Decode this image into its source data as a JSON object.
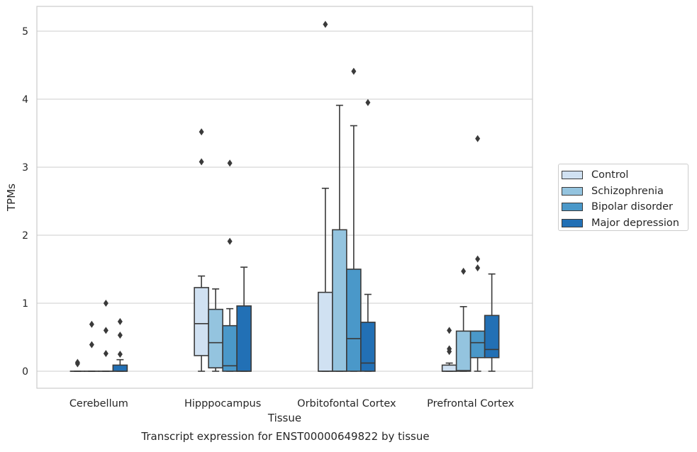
{
  "chart_data": {
    "type": "box",
    "caption": "Transcript expression for ENST00000649822 by tissue",
    "xlabel": "Tissue",
    "ylabel": "TPMs",
    "ylim": [
      -0.25,
      5.35
    ],
    "yticks": [
      "0",
      "1",
      "2",
      "3",
      "4",
      "5"
    ],
    "grid": "horizontal",
    "legend_position": "right",
    "categories": [
      "Cerebellum",
      "Hipppocampus",
      "Orbitofontal Cortex",
      "Prefrontal Cortex"
    ],
    "series": [
      {
        "name": "Control",
        "color": "#d0e1f2",
        "boxes": [
          {
            "q1": 0,
            "median": 0,
            "q3": 0,
            "whisker_low": 0,
            "whisker_high": 0,
            "outliers": [
              0.13,
              0.11
            ]
          },
          {
            "q1": 0.23,
            "median": 0.7,
            "q3": 1.23,
            "whisker_low": 0,
            "whisker_high": 1.4,
            "outliers": [
              3.08,
              3.52
            ]
          },
          {
            "q1": 0,
            "median": 0,
            "q3": 1.16,
            "whisker_low": 0,
            "whisker_high": 2.69,
            "outliers": [
              5.1
            ]
          },
          {
            "q1": 0,
            "median": 0,
            "q3": 0.09,
            "whisker_low": 0,
            "whisker_high": 0.12,
            "outliers": [
              0.6,
              0.33,
              0.29
            ]
          }
        ]
      },
      {
        "name": "Schizophrenia",
        "color": "#94c4df",
        "boxes": [
          {
            "q1": 0,
            "median": 0,
            "q3": 0,
            "whisker_low": 0,
            "whisker_high": 0,
            "outliers": [
              0.69,
              0.39
            ]
          },
          {
            "q1": 0.05,
            "median": 0.42,
            "q3": 0.91,
            "whisker_low": 0,
            "whisker_high": 1.21,
            "outliers": []
          },
          {
            "q1": 0,
            "median": 0,
            "q3": 2.08,
            "whisker_low": 0,
            "whisker_high": 3.91,
            "outliers": []
          },
          {
            "q1": 0,
            "median": 0.01,
            "q3": 0.59,
            "whisker_low": 0,
            "whisker_high": 0.95,
            "outliers": [
              1.47
            ]
          }
        ]
      },
      {
        "name": "Bipolar disorder",
        "color": "#4a98c9",
        "boxes": [
          {
            "q1": 0,
            "median": 0,
            "q3": 0,
            "whisker_low": 0,
            "whisker_high": 0,
            "outliers": [
              1.0,
              0.6,
              0.26
            ]
          },
          {
            "q1": 0,
            "median": 0.08,
            "q3": 0.67,
            "whisker_low": 0,
            "whisker_high": 0.92,
            "outliers": [
              3.06,
              1.91
            ]
          },
          {
            "q1": 0,
            "median": 0.48,
            "q3": 1.5,
            "whisker_low": 0,
            "whisker_high": 3.61,
            "outliers": [
              4.41
            ]
          },
          {
            "q1": 0.2,
            "median": 0.42,
            "q3": 0.59,
            "whisker_low": 0,
            "whisker_high": 0.59,
            "outliers": [
              1.65,
              1.52,
              3.42
            ]
          }
        ]
      },
      {
        "name": "Major depression",
        "color": "#2270b5",
        "boxes": [
          {
            "q1": 0,
            "median": 0,
            "q3": 0.09,
            "whisker_low": 0,
            "whisker_high": 0.17,
            "outliers": [
              0.73,
              0.53,
              0.25
            ]
          },
          {
            "q1": 0,
            "median": 0,
            "q3": 0.96,
            "whisker_low": 0,
            "whisker_high": 1.53,
            "outliers": []
          },
          {
            "q1": 0,
            "median": 0.12,
            "q3": 0.72,
            "whisker_low": 0,
            "whisker_high": 1.13,
            "outliers": [
              3.95
            ]
          },
          {
            "q1": 0.2,
            "median": 0.32,
            "q3": 0.82,
            "whisker_low": 0,
            "whisker_high": 1.43,
            "outliers": []
          }
        ]
      }
    ]
  }
}
